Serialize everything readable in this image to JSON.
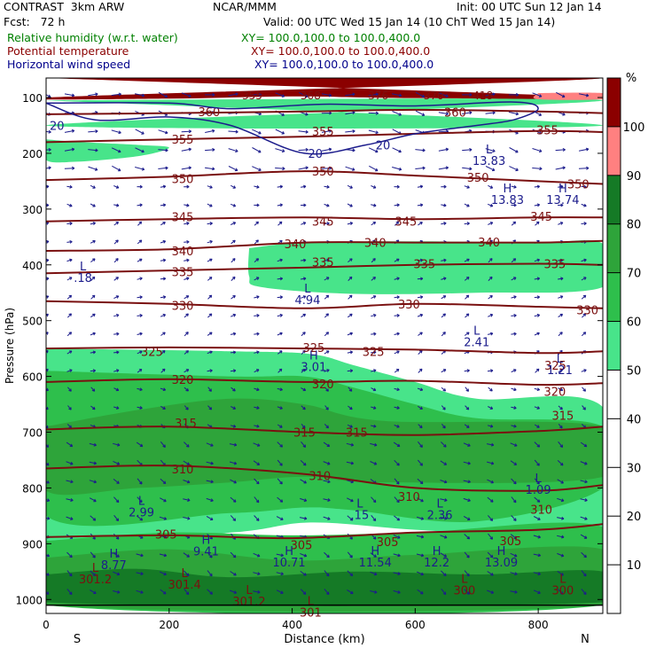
{
  "header": {
    "model": "CONTRAST  3km ARW",
    "org": "NCAR/MMM",
    "init": "Init: 00 UTC Sun 12 Jan 14",
    "fcst": "Fcst:   72 h",
    "valid": "Valid: 00 UTC Wed 15 Jan 14 (10 ChT Wed 15 Jan 14)",
    "fields": [
      {
        "name": "Relative humidity (w.r.t. water)",
        "xy": "XY= 100.0,100.0 to 100.0,400.0",
        "color": "#008000"
      },
      {
        "name": "Potential temperature",
        "xy": "XY= 100.0,100.0 to 100.0,400.0",
        "color": "#8b0000"
      },
      {
        "name": "Horizontal wind speed",
        "xy": "XY= 100.0,100.0 to 100.0,400.0",
        "color": "#00008b"
      }
    ]
  },
  "chart_data": {
    "type": "cross-section",
    "xlabel": "Distance (km)",
    "ylabel": "Pressure (hPa)",
    "x_ticks": [
      0,
      200,
      400,
      600,
      800
    ],
    "y_ticks": [
      100,
      200,
      300,
      400,
      500,
      600,
      700,
      800,
      900,
      1000
    ],
    "xlim": [
      0,
      905
    ],
    "ylim": [
      1025,
      65
    ],
    "end_labels": {
      "left": "S",
      "right": "N"
    },
    "colorbar": {
      "unit": "%",
      "levels": [
        10,
        20,
        30,
        40,
        50,
        60,
        70,
        80,
        90,
        100
      ],
      "colors": [
        "#ffffff",
        "#ffffff",
        "#ffffff",
        "#ffffff",
        "#ffffff",
        "#48e48a",
        "#2ebf4c",
        "#2ea43a",
        "#157a26",
        "#ff8080",
        "#8b0000"
      ]
    },
    "rh_bands": [
      {
        "fill": "#48e48a",
        "top": [
          [
            0,
            105
          ],
          [
            905,
            105
          ]
        ],
        "bot": [
          [
            0,
            150
          ],
          [
            905,
            150
          ]
        ]
      },
      {
        "fill": "#48e48a",
        "top": [
          [
            0,
            175
          ],
          [
            60,
            180
          ],
          [
            150,
            185
          ],
          [
            200,
            190
          ],
          [
            150,
            205
          ],
          [
            50,
            215
          ],
          [
            0,
            212
          ]
        ],
        "bot": []
      },
      {
        "fill": "#48e48a",
        "top": [
          [
            330,
            370
          ],
          [
            420,
            360
          ],
          [
            600,
            358
          ],
          [
            800,
            360
          ],
          [
            905,
            362
          ]
        ],
        "bot": [
          [
            905,
            440
          ],
          [
            700,
            450
          ],
          [
            500,
            452
          ],
          [
            350,
            440
          ],
          [
            330,
            420
          ]
        ]
      },
      {
        "fill": "#48e48a",
        "top": [
          [
            0,
            550
          ],
          [
            300,
            555
          ],
          [
            430,
            560
          ],
          [
            500,
            580
          ],
          [
            600,
            610
          ],
          [
            700,
            640
          ],
          [
            905,
            655
          ]
        ],
        "bot": [
          [
            905,
            870
          ],
          [
            800,
            885
          ],
          [
            600,
            875
          ],
          [
            430,
            862
          ],
          [
            300,
            880
          ],
          [
            0,
            895
          ]
        ]
      },
      {
        "fill": "#2ebf4c",
        "top": [
          [
            0,
            590
          ],
          [
            300,
            600
          ],
          [
            420,
            600
          ],
          [
            500,
            620
          ],
          [
            600,
            650
          ],
          [
            700,
            675
          ],
          [
            905,
            690
          ]
        ],
        "bot": [
          [
            905,
            800
          ],
          [
            700,
            860
          ],
          [
            500,
            840
          ],
          [
            420,
            835
          ],
          [
            300,
            845
          ],
          [
            0,
            850
          ]
        ]
      },
      {
        "fill": "#2ea43a",
        "top": [
          [
            0,
            690
          ],
          [
            150,
            660
          ],
          [
            300,
            640
          ],
          [
            420,
            650
          ],
          [
            550,
            680
          ],
          [
            905,
            690
          ]
        ],
        "bot": [
          [
            905,
            780
          ],
          [
            550,
            790
          ],
          [
            420,
            780
          ],
          [
            300,
            790
          ],
          [
            150,
            800
          ],
          [
            0,
            805
          ]
        ]
      },
      {
        "fill": "#2ebf4c",
        "top": [
          [
            0,
            895
          ],
          [
            200,
            880
          ],
          [
            400,
            885
          ],
          [
            600,
            880
          ],
          [
            905,
            870
          ]
        ],
        "bot": [
          [
            905,
            1010
          ],
          [
            0,
            1010
          ]
        ]
      },
      {
        "fill": "#2ea43a",
        "top": [
          [
            0,
            925
          ],
          [
            200,
            910
          ],
          [
            400,
            930
          ],
          [
            600,
            920
          ],
          [
            905,
            910
          ]
        ],
        "bot": [
          [
            905,
            1010
          ],
          [
            0,
            1010
          ]
        ]
      },
      {
        "fill": "#157a26",
        "top": [
          [
            0,
            955
          ],
          [
            150,
            945
          ],
          [
            300,
            960
          ],
          [
            500,
            950
          ],
          [
            700,
            955
          ],
          [
            905,
            950
          ]
        ],
        "bot": [
          [
            905,
            1005
          ],
          [
            0,
            1005
          ]
        ]
      },
      {
        "fill": "#8b0000",
        "top": [
          [
            0,
            65
          ],
          [
            905,
            65
          ]
        ],
        "bot": [
          [
            0,
            100
          ],
          [
            200,
            102
          ],
          [
            400,
            98
          ],
          [
            600,
            101
          ],
          [
            905,
            100
          ]
        ]
      },
      {
        "fill": "#ff8080",
        "top": [
          [
            800,
            92
          ],
          [
            905,
            92
          ]
        ],
        "bot": [
          [
            905,
            103
          ],
          [
            800,
            103
          ]
        ]
      }
    ],
    "theta_lines": [
      {
        "value": 305,
        "points": [
          [
            0,
            888
          ],
          [
            200,
            885
          ],
          [
            400,
            890
          ],
          [
            600,
            880
          ],
          [
            800,
            875
          ],
          [
            905,
            865
          ]
        ],
        "labels": [
          [
            195,
            883
          ],
          [
            415,
            902
          ],
          [
            555,
            896
          ],
          [
            755,
            895
          ]
        ]
      },
      {
        "value": 310,
        "points": [
          [
            0,
            765
          ],
          [
            200,
            760
          ],
          [
            420,
            775
          ],
          [
            600,
            800
          ],
          [
            800,
            805
          ],
          [
            905,
            795
          ]
        ],
        "labels": [
          [
            222,
            766
          ],
          [
            445,
            778
          ],
          [
            590,
            815
          ],
          [
            805,
            838
          ]
        ]
      },
      {
        "value": 315,
        "points": [
          [
            0,
            695
          ],
          [
            200,
            690
          ],
          [
            420,
            700
          ],
          [
            600,
            705
          ],
          [
            800,
            698
          ],
          [
            905,
            690
          ]
        ],
        "labels": [
          [
            227,
            683
          ],
          [
            420,
            700
          ],
          [
            505,
            700
          ],
          [
            840,
            670
          ]
        ]
      },
      {
        "value": 320,
        "points": [
          [
            0,
            610
          ],
          [
            200,
            605
          ],
          [
            420,
            610
          ],
          [
            600,
            608
          ],
          [
            800,
            615
          ],
          [
            905,
            612
          ]
        ],
        "labels": [
          [
            222,
            605
          ],
          [
            450,
            613
          ],
          [
            827,
            627
          ]
        ]
      },
      {
        "value": 325,
        "points": [
          [
            0,
            550
          ],
          [
            200,
            548
          ],
          [
            420,
            550
          ],
          [
            600,
            552
          ],
          [
            800,
            558
          ],
          [
            905,
            555
          ]
        ],
        "labels": [
          [
            172,
            555
          ],
          [
            435,
            548
          ],
          [
            532,
            555
          ],
          [
            828,
            580
          ]
        ]
      },
      {
        "value": 330,
        "points": [
          [
            0,
            465
          ],
          [
            200,
            470
          ],
          [
            420,
            478
          ],
          [
            600,
            470
          ],
          [
            800,
            475
          ],
          [
            905,
            478
          ]
        ],
        "labels": [
          [
            222,
            473
          ],
          [
            590,
            470
          ],
          [
            880,
            481
          ]
        ]
      },
      {
        "value": 335,
        "points": [
          [
            0,
            415
          ],
          [
            200,
            410
          ],
          [
            420,
            405
          ],
          [
            600,
            400
          ],
          [
            800,
            398
          ],
          [
            905,
            400
          ]
        ],
        "labels": [
          [
            222,
            412
          ],
          [
            450,
            395
          ],
          [
            615,
            398
          ],
          [
            827,
            398
          ]
        ]
      },
      {
        "value": 340,
        "points": [
          [
            0,
            375
          ],
          [
            200,
            372
          ],
          [
            420,
            360
          ],
          [
            600,
            360
          ],
          [
            800,
            360
          ],
          [
            905,
            357
          ]
        ],
        "labels": [
          [
            222,
            375
          ],
          [
            405,
            362
          ],
          [
            535,
            360
          ],
          [
            720,
            359
          ]
        ]
      },
      {
        "value": 345,
        "points": [
          [
            0,
            322
          ],
          [
            200,
            318
          ],
          [
            420,
            315
          ],
          [
            600,
            318
          ],
          [
            800,
            315
          ],
          [
            905,
            315
          ]
        ],
        "labels": [
          [
            222,
            314
          ],
          [
            450,
            322
          ],
          [
            585,
            322
          ],
          [
            805,
            313
          ]
        ]
      },
      {
        "value": 350,
        "points": [
          [
            0,
            248
          ],
          [
            200,
            242
          ],
          [
            420,
            232
          ],
          [
            600,
            240
          ],
          [
            800,
            250
          ],
          [
            905,
            255
          ]
        ],
        "labels": [
          [
            222,
            245
          ],
          [
            450,
            232
          ],
          [
            702,
            243
          ],
          [
            865,
            255
          ]
        ]
      },
      {
        "value": 355,
        "points": [
          [
            0,
            180
          ],
          [
            200,
            175
          ],
          [
            420,
            170
          ],
          [
            600,
            165
          ],
          [
            800,
            160
          ],
          [
            905,
            162
          ]
        ],
        "labels": [
          [
            222,
            175
          ],
          [
            450,
            160
          ],
          [
            815,
            158
          ]
        ]
      },
      {
        "value": 360,
        "points": [
          [
            0,
            130
          ],
          [
            200,
            128
          ],
          [
            420,
            125
          ],
          [
            600,
            122
          ],
          [
            800,
            125
          ],
          [
            905,
            128
          ]
        ],
        "labels": [
          [
            265,
            125
          ],
          [
            665,
            126
          ]
        ]
      }
    ],
    "theta_labels_top": [
      [
        335,
        1.0,
        "355"
      ],
      [
        430,
        1.0,
        "368"
      ],
      [
        540,
        1.0,
        "376"
      ],
      [
        630,
        1.0,
        "370"
      ],
      [
        710,
        1.0,
        "418"
      ]
    ],
    "wind_contours": [
      {
        "value": 20,
        "points": [
          [
            0,
            110
          ],
          [
            80,
            140
          ],
          [
            200,
            135
          ],
          [
            300,
            150
          ],
          [
            420,
            200
          ],
          [
            520,
            185
          ],
          [
            600,
            165
          ],
          [
            700,
            150
          ],
          [
            760,
            140
          ],
          [
            800,
            120
          ],
          [
            760,
            108
          ],
          [
            600,
            115
          ],
          [
            450,
            112
          ],
          [
            300,
            120
          ],
          [
            200,
            110
          ]
        ],
        "labels": [
          [
            0,
            150
          ],
          [
            420,
            200
          ],
          [
            530,
            185
          ]
        ]
      }
    ],
    "extrema": [
      {
        "type": "L",
        "x": 60,
        "p": 410,
        "value": ".18"
      },
      {
        "type": "L",
        "x": 425,
        "p": 450,
        "value": "4.94"
      },
      {
        "type": "H",
        "x": 435,
        "p": 570,
        "value": "3.01"
      },
      {
        "type": "L",
        "x": 700,
        "p": 525,
        "value": "2.41"
      },
      {
        "type": "L",
        "x": 835,
        "p": 575,
        "value": "1.21"
      },
      {
        "type": "L",
        "x": 720,
        "p": 200,
        "value": "13.83"
      },
      {
        "type": "H",
        "x": 750,
        "p": 270,
        "value": "13.83"
      },
      {
        "type": "H",
        "x": 840,
        "p": 270,
        "value": "13.74"
      },
      {
        "type": "L",
        "x": 155,
        "p": 830,
        "value": "2.99"
      },
      {
        "type": "L",
        "x": 510,
        "p": 835,
        "value": ".15"
      },
      {
        "type": "L",
        "x": 640,
        "p": 835,
        "value": "2.36"
      },
      {
        "type": "L",
        "x": 800,
        "p": 790,
        "value": "1.09"
      },
      {
        "type": "H",
        "x": 110,
        "p": 925,
        "value": "8.77"
      },
      {
        "type": "H",
        "x": 260,
        "p": 900,
        "value": "9.41"
      },
      {
        "type": "H",
        "x": 395,
        "p": 920,
        "value": "10.71"
      },
      {
        "type": "H",
        "x": 535,
        "p": 920,
        "value": "11.54"
      },
      {
        "type": "H",
        "x": 635,
        "p": 920,
        "value": "12.2"
      },
      {
        "type": "H",
        "x": 740,
        "p": 920,
        "value": "13.09"
      },
      {
        "type": "L",
        "x": 80,
        "p": 950,
        "value": "301.2"
      },
      {
        "type": "L",
        "x": 225,
        "p": 960,
        "value": "301.4"
      },
      {
        "type": "L",
        "x": 330,
        "p": 990,
        "value": "301.2"
      },
      {
        "type": "L",
        "x": 430,
        "p": 1010,
        "value": "301"
      },
      {
        "type": "L",
        "x": 680,
        "p": 970,
        "value": "300"
      },
      {
        "type": "L",
        "x": 840,
        "p": 970,
        "value": "300"
      }
    ]
  }
}
